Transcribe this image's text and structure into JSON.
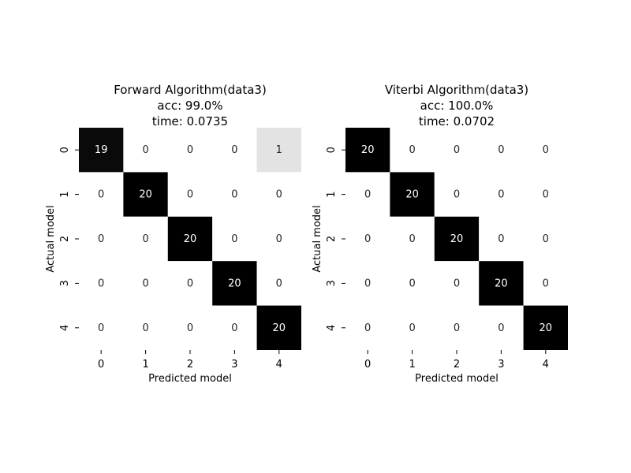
{
  "chart_data": [
    {
      "type": "heatmap",
      "title": [
        "Forward Algorithm(data3)",
        "acc: 99.0%",
        "time: 0.0735"
      ],
      "xlabel": "Predicted model",
      "ylabel": "Actual model",
      "x_categories": [
        "0",
        "1",
        "2",
        "3",
        "4"
      ],
      "y_categories": [
        "0",
        "1",
        "2",
        "3",
        "4"
      ],
      "matrix": [
        [
          19,
          0,
          0,
          0,
          1
        ],
        [
          0,
          20,
          0,
          0,
          0
        ],
        [
          0,
          0,
          20,
          0,
          0
        ],
        [
          0,
          0,
          0,
          20,
          0
        ],
        [
          0,
          0,
          0,
          0,
          20
        ]
      ],
      "value_range": [
        0,
        20
      ],
      "colormap": "white-to-black",
      "grid": false
    },
    {
      "type": "heatmap",
      "title": [
        "Viterbi Algorithm(data3)",
        "acc: 100.0%",
        "time: 0.0702"
      ],
      "xlabel": "Predicted model",
      "ylabel": "Actual model",
      "x_categories": [
        "0",
        "1",
        "2",
        "3",
        "4"
      ],
      "y_categories": [
        "0",
        "1",
        "2",
        "3",
        "4"
      ],
      "matrix": [
        [
          20,
          0,
          0,
          0,
          0
        ],
        [
          0,
          20,
          0,
          0,
          0
        ],
        [
          0,
          0,
          20,
          0,
          0
        ],
        [
          0,
          0,
          0,
          20,
          0
        ],
        [
          0,
          0,
          0,
          0,
          20
        ]
      ],
      "value_range": [
        0,
        20
      ],
      "colormap": "white-to-black",
      "grid": false
    }
  ]
}
